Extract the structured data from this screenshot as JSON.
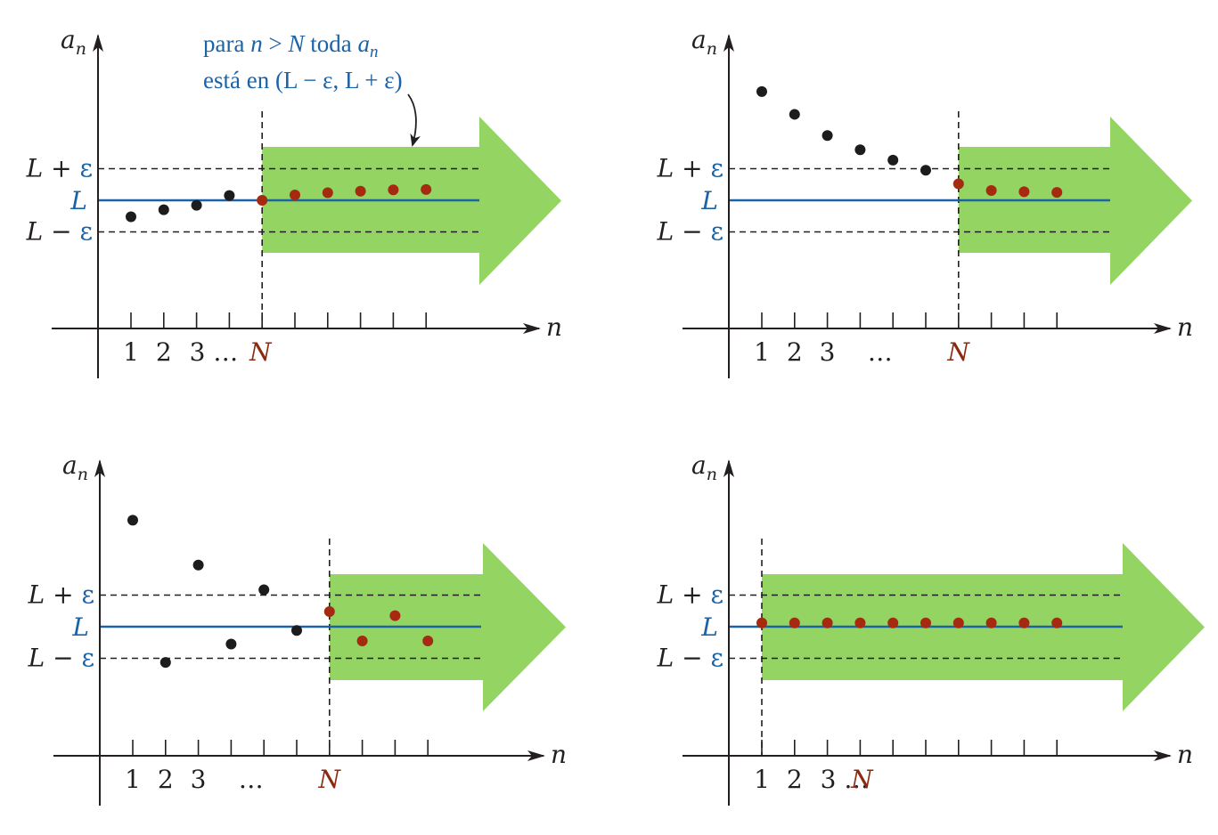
{
  "annotation": {
    "line1_prefix": "para ",
    "line1_n": "n",
    "line1_gt": " > ",
    "line1_N": "N",
    "line1_toda": " toda ",
    "line1_a": "a",
    "line1_sub": "n",
    "line2": "está en (L − ε, L + ε)"
  },
  "labels": {
    "axis_y_base": "a",
    "axis_y_sub": "n",
    "axis_x": "n",
    "L_plus": "L + ε",
    "L": "L",
    "L_minus": "L − ε",
    "N": "N",
    "ellipsis": "…"
  },
  "colors": {
    "arrow": "#93d463",
    "L_line": "#1a63a7",
    "point_in_band": "#a52a10",
    "point_outside": "#1c1c1c"
  },
  "panels": [
    {
      "tick_labels": [
        "1",
        "2",
        "3 …"
      ],
      "N_index": 5,
      "points_outside": [
        [
          1,
          -0.52
        ],
        [
          2,
          -0.3
        ],
        [
          3,
          -0.16
        ],
        [
          4,
          0.15
        ]
      ],
      "points_in_band": [
        [
          5,
          0.0
        ],
        [
          6,
          0.17
        ],
        [
          7,
          0.24
        ],
        [
          8,
          0.29
        ],
        [
          9,
          0.33
        ],
        [
          10,
          0.34
        ]
      ]
    },
    {
      "tick_labels": [
        "1",
        "2",
        "3",
        "…"
      ],
      "N_index": 7,
      "points_outside": [
        [
          1,
          3.44
        ],
        [
          2,
          2.72
        ],
        [
          3,
          2.05
        ],
        [
          4,
          1.6
        ],
        [
          5,
          1.27
        ],
        [
          6,
          0.95
        ]
      ],
      "points_in_band": [
        [
          7,
          0.52
        ],
        [
          8,
          0.31
        ],
        [
          9,
          0.27
        ],
        [
          10,
          0.25
        ]
      ]
    },
    {
      "tick_labels": [
        "1",
        "2",
        "3",
        "…"
      ],
      "N_index": 7,
      "points_outside": [
        [
          1,
          3.37
        ],
        [
          2,
          -1.13
        ],
        [
          3,
          1.95
        ],
        [
          4,
          -0.55
        ],
        [
          5,
          1.17
        ],
        [
          6,
          -0.12
        ]
      ],
      "points_in_band": [
        [
          7,
          0.48
        ],
        [
          8,
          -0.45
        ],
        [
          9,
          0.35
        ],
        [
          10,
          -0.45
        ]
      ]
    },
    {
      "tick_labels": [
        "1",
        "2",
        "3 …"
      ],
      "N_index": 1,
      "points_outside": [],
      "points_in_band": [
        [
          1,
          0.12
        ],
        [
          2,
          0.12
        ],
        [
          3,
          0.12
        ],
        [
          4,
          0.12
        ],
        [
          5,
          0.12
        ],
        [
          6,
          0.12
        ],
        [
          7,
          0.12
        ],
        [
          8,
          0.12
        ],
        [
          9,
          0.12
        ],
        [
          10,
          0.12
        ]
      ]
    }
  ]
}
